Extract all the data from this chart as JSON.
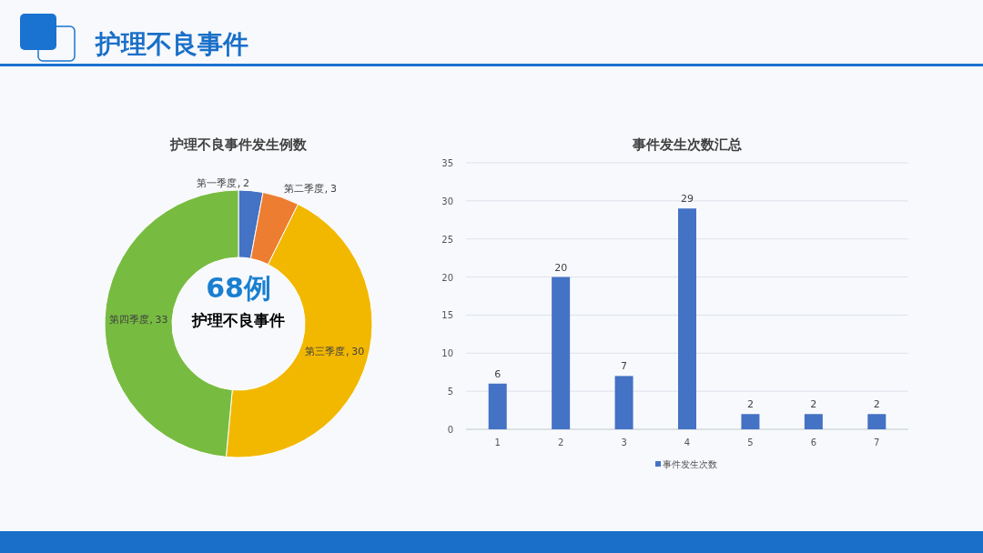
{
  "chart_data": [
    {
      "type": "other",
      "title": "护理不良事件"
    },
    {
      "type": "donut",
      "title": "护理不良事件发生例数",
      "categories": [
        "第一季度",
        "第二季度",
        "第三季度",
        "第四季度"
      ],
      "values": [
        2,
        3,
        30,
        33
      ],
      "colors": [
        "#4472c4",
        "#ed7d31",
        "#f2b800",
        "#77bc41"
      ],
      "data_labels": true,
      "annotations": [
        "68例",
        "护理不良事件"
      ]
    },
    {
      "type": "bar",
      "title": "事件发生次数汇总",
      "categories": [
        "1",
        "2",
        "3",
        "4",
        "5",
        "6",
        "7"
      ],
      "series": [
        {
          "name": "事件发生次数",
          "color": "#4472c4",
          "values": [
            6,
            20,
            7,
            29,
            2,
            2,
            2
          ]
        }
      ],
      "ylim": [
        0,
        35
      ],
      "yticks": [
        0,
        5,
        10,
        15,
        20,
        25,
        30,
        35
      ],
      "grid": "y",
      "legend": "bottom",
      "data_labels": true
    }
  ]
}
